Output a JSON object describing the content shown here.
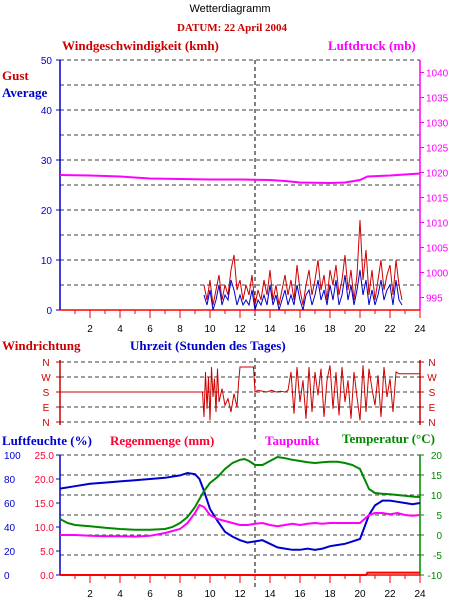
{
  "chart_data": [
    {
      "id": "wind",
      "type": "line",
      "title": "Wetterdiagramm",
      "subtitle": "DATUM: 22 April 2004",
      "ylabel_left": "Windgeschwindigkeit (kmh)",
      "ylabel_right": "Luftdruck (mb)",
      "legend": [
        "Gust",
        "Average"
      ],
      "xlim": [
        0,
        24
      ],
      "x_ticks": [
        "2",
        "4",
        "6",
        "8",
        "10",
        "12",
        "14",
        "16",
        "18",
        "20",
        "22",
        "24"
      ],
      "ylim_left": [
        0,
        50
      ],
      "y_ticks_left": [
        "0",
        "10",
        "20",
        "30",
        "40",
        "50"
      ],
      "ylim_right": [
        992.5,
        1042.5
      ],
      "y_ticks_right": [
        "995",
        "1000",
        "1005",
        "1010",
        "1015",
        "1020",
        "1025",
        "1030",
        "1035",
        "1040"
      ],
      "grid": true,
      "series": [
        {
          "name": "Gust",
          "color": "#cc0000",
          "x": [
            9.6,
            9.8,
            10.0,
            10.2,
            10.4,
            10.6,
            10.8,
            11.0,
            11.2,
            11.4,
            11.6,
            11.8,
            12.0,
            12.2,
            12.4,
            12.6,
            12.8,
            13.0,
            13.2,
            13.4,
            13.6,
            13.8,
            14.0,
            14.2,
            14.4,
            14.6,
            14.8,
            15.0,
            15.2,
            15.4,
            15.6,
            15.8,
            16.0,
            16.2,
            16.4,
            16.6,
            16.8,
            17.0,
            17.2,
            17.4,
            17.6,
            17.8,
            18.0,
            18.2,
            18.4,
            18.6,
            18.8,
            19.0,
            19.2,
            19.4,
            19.6,
            19.8,
            20.0,
            20.2,
            20.4,
            20.6,
            20.8,
            21.0,
            21.2,
            21.4,
            21.6,
            21.8,
            22.0,
            22.2,
            22.4,
            22.6,
            22.8
          ],
          "y": [
            5,
            2,
            6,
            1,
            4,
            7,
            2,
            5,
            3,
            8,
            11,
            4,
            6,
            2,
            5,
            3,
            7,
            1,
            4,
            2,
            6,
            3,
            8,
            2,
            5,
            1,
            4,
            7,
            3,
            6,
            2,
            9,
            4,
            1,
            5,
            8,
            3,
            6,
            10,
            4,
            7,
            2,
            8,
            5,
            9,
            3,
            6,
            11,
            4,
            8,
            2,
            7,
            18,
            6,
            12,
            3,
            8,
            2,
            6,
            10,
            4,
            7,
            9,
            3,
            10,
            5,
            2
          ],
          "y_axis": "left"
        },
        {
          "name": "Average",
          "color": "#0000cc",
          "x": [
            9.6,
            9.8,
            10.0,
            10.2,
            10.4,
            10.6,
            10.8,
            11.0,
            11.2,
            11.4,
            11.6,
            11.8,
            12.0,
            12.2,
            12.4,
            12.6,
            12.8,
            13.0,
            13.2,
            13.4,
            13.6,
            13.8,
            14.0,
            14.2,
            14.4,
            14.6,
            14.8,
            15.0,
            15.2,
            15.4,
            15.6,
            15.8,
            16.0,
            16.2,
            16.4,
            16.6,
            16.8,
            17.0,
            17.2,
            17.4,
            17.6,
            17.8,
            18.0,
            18.2,
            18.4,
            18.6,
            18.8,
            19.0,
            19.2,
            19.4,
            19.6,
            19.8,
            20.0,
            20.2,
            20.4,
            20.6,
            20.8,
            21.0,
            21.2,
            21.4,
            21.6,
            21.8,
            22.0,
            22.2,
            22.4,
            22.6,
            22.8
          ],
          "y": [
            3,
            1,
            4,
            0,
            2,
            5,
            1,
            3,
            2,
            6,
            4,
            1,
            3,
            1,
            2,
            1,
            4,
            0,
            2,
            1,
            3,
            1,
            5,
            1,
            3,
            0,
            2,
            4,
            1,
            3,
            1,
            5,
            2,
            0,
            3,
            4,
            1,
            3,
            6,
            2,
            4,
            1,
            5,
            2,
            6,
            1,
            3,
            7,
            2,
            5,
            1,
            4,
            8,
            3,
            6,
            1,
            4,
            1,
            3,
            6,
            2,
            4,
            5,
            1,
            6,
            2,
            1
          ],
          "y_axis": "left"
        },
        {
          "name": "Luftdruck",
          "color": "#ff00ff",
          "x": [
            0,
            2,
            4,
            6,
            8,
            10,
            12,
            14,
            15,
            16,
            18,
            19,
            20,
            20.5,
            22,
            24
          ],
          "y": [
            1019.5,
            1019.4,
            1019.2,
            1018.8,
            1018.7,
            1018.6,
            1018.6,
            1018.5,
            1018.3,
            1018.0,
            1017.9,
            1018.0,
            1018.5,
            1019.2,
            1019.4,
            1019.8
          ],
          "y_axis": "right"
        }
      ]
    },
    {
      "id": "direction",
      "type": "line",
      "title": "Windrichtung",
      "xlabel": "Uhrzeit (Stunden des Tages)",
      "xlim": [
        0,
        24
      ],
      "y_ticks": [
        "N",
        "W",
        "S",
        "E",
        "N"
      ],
      "ylim": [
        0,
        360
      ],
      "series": [
        {
          "name": "Windrichtung",
          "color": "#cc0000",
          "x": [
            0,
            9.5,
            9.6,
            9.7,
            9.8,
            9.9,
            10.0,
            10.1,
            10.2,
            10.3,
            10.4,
            10.5,
            10.6,
            10.8,
            11.0,
            11.2,
            11.4,
            11.6,
            11.8,
            11.9,
            12.0,
            12.3,
            12.6,
            12.9,
            13.0,
            13.2,
            13.5,
            13.8,
            14.1,
            14.4,
            14.7,
            15.0,
            15.2,
            15.4,
            15.6,
            15.8,
            16.0,
            16.2,
            16.4,
            16.6,
            16.8,
            17.0,
            17.2,
            17.4,
            17.6,
            17.8,
            18.0,
            18.2,
            18.4,
            18.6,
            18.8,
            19.0,
            19.2,
            19.4,
            19.6,
            19.8,
            20.0,
            20.2,
            20.4,
            20.6,
            20.8,
            21.0,
            21.2,
            21.4,
            21.6,
            21.8,
            22.0,
            22.2,
            22.4,
            22.6,
            22.8,
            23.0,
            24
          ],
          "y": [
            180,
            180,
            30,
            300,
            80,
            270,
            10,
            330,
            150,
            260,
            60,
            320,
            120,
            200,
            100,
            140,
            60,
            170,
            90,
            230,
            330,
            330,
            330,
            330,
            180,
            190,
            185,
            180,
            190,
            180,
            185,
            180,
            190,
            300,
            50,
            330,
            120,
            250,
            20,
            330,
            60,
            300,
            160,
            320,
            30,
            250,
            340,
            80,
            300,
            40,
            330,
            120,
            250,
            20,
            300,
            150,
            10,
            340,
            60,
            320,
            200,
            100,
            280,
            30,
            330,
            150,
            260,
            60,
            300,
            290,
            290,
            290,
            290
          ]
        }
      ]
    },
    {
      "id": "climate",
      "type": "line",
      "ylabel_left": "Luftfeuchte (%)",
      "ylabel_left2": "Regenmenge (mm)",
      "ylabel_right2": "Taupunkt",
      "ylabel_right": "Temperatur (°C)",
      "xlim": [
        0,
        24
      ],
      "x_ticks": [
        "2",
        "4",
        "6",
        "8",
        "10",
        "12",
        "14",
        "16",
        "18",
        "20",
        "22",
        "24"
      ],
      "y_ticks_humidity": [
        "0",
        "20",
        "40",
        "60",
        "80",
        "100"
      ],
      "ylim_humidity": [
        0,
        100
      ],
      "y_ticks_rain": [
        "0.0",
        "5.0",
        "10.0",
        "15.0",
        "20.0",
        "25.0"
      ],
      "ylim_rain": [
        0,
        25
      ],
      "y_ticks_temp": [
        "-10",
        "-5",
        "0",
        "5",
        "10",
        "15",
        "20"
      ],
      "ylim_temp": [
        -10,
        20
      ],
      "grid": true,
      "series": [
        {
          "name": "Luftfeuchte",
          "color": "#0000cc",
          "axis": "humidity",
          "x": [
            0,
            1,
            2,
            3,
            4,
            5,
            6,
            7,
            8,
            8.5,
            9,
            9.3,
            9.6,
            10,
            10.5,
            11,
            11.5,
            12,
            12.5,
            13,
            13.5,
            14,
            14.5,
            15,
            15.5,
            16,
            16.5,
            17,
            17.5,
            18,
            18.5,
            19,
            19.5,
            20,
            20.3,
            20.6,
            21,
            21.5,
            22,
            22.5,
            23,
            23.5,
            24
          ],
          "y": [
            72,
            74,
            76,
            77,
            78,
            79,
            80,
            81,
            83,
            85,
            84,
            80,
            70,
            55,
            45,
            36,
            32,
            29,
            27,
            28,
            29,
            26,
            23,
            22,
            21,
            21,
            22,
            21,
            22,
            24,
            25,
            26,
            28,
            30,
            40,
            50,
            58,
            62,
            62,
            61,
            60,
            59,
            60
          ]
        },
        {
          "name": "Regenmenge",
          "color": "#ff0000",
          "axis": "rain",
          "x": [
            0,
            20.4,
            20.5,
            24
          ],
          "y": [
            0,
            0,
            0.5,
            0.5
          ]
        },
        {
          "name": "Taupunkt",
          "color": "#ff00ff",
          "axis": "temp",
          "x": [
            0,
            1,
            2,
            3,
            4,
            5,
            6,
            7,
            8,
            8.5,
            9,
            9.3,
            9.6,
            10,
            10.5,
            11,
            11.5,
            12,
            12.5,
            13,
            13.5,
            14,
            14.5,
            15,
            15.5,
            16,
            16.5,
            17,
            17.5,
            18,
            18.5,
            19,
            19.5,
            20,
            20.3,
            20.6,
            21,
            21.5,
            22,
            22.5,
            23,
            23.5,
            24
          ],
          "y": [
            0,
            0,
            -0.2,
            -0.3,
            -0.3,
            -0.4,
            -0.2,
            0.5,
            1.5,
            3,
            5.5,
            7.5,
            7,
            5,
            4,
            3.5,
            3,
            2.5,
            2.5,
            2.8,
            3,
            2.5,
            2.2,
            2.5,
            2.8,
            2.5,
            2.8,
            3,
            2.8,
            3,
            3,
            3,
            3,
            3,
            4,
            5,
            5.5,
            5.5,
            5.2,
            5.5,
            5,
            4.8,
            5
          ]
        },
        {
          "name": "Temperatur",
          "color": "#008800",
          "axis": "temp",
          "x": [
            0,
            0.5,
            1,
            2,
            3,
            4,
            5,
            6,
            7,
            7.5,
            8,
            8.5,
            9,
            9.3,
            9.6,
            10,
            10.5,
            11,
            11.5,
            12,
            12.3,
            12.6,
            13,
            13.5,
            14,
            14.5,
            15,
            15.5,
            16,
            16.5,
            17,
            17.5,
            18,
            18.5,
            19,
            19.5,
            20,
            20.3,
            20.6,
            21,
            21.5,
            22,
            22.5,
            23,
            23.5,
            24
          ],
          "y": [
            4,
            3,
            2.5,
            2.2,
            1.8,
            1.5,
            1.3,
            1.3,
            1.5,
            2,
            3,
            4.5,
            7,
            9,
            11,
            13,
            14.5,
            16.5,
            18,
            18.8,
            19,
            18.5,
            17.5,
            17.5,
            18.5,
            19.5,
            19.2,
            18.8,
            18.5,
            18.2,
            18,
            18.2,
            18.3,
            18.3,
            18,
            17.5,
            16.5,
            14,
            11.5,
            10.5,
            10.3,
            10.2,
            10,
            9.8,
            9.6,
            9.5
          ]
        }
      ]
    }
  ]
}
